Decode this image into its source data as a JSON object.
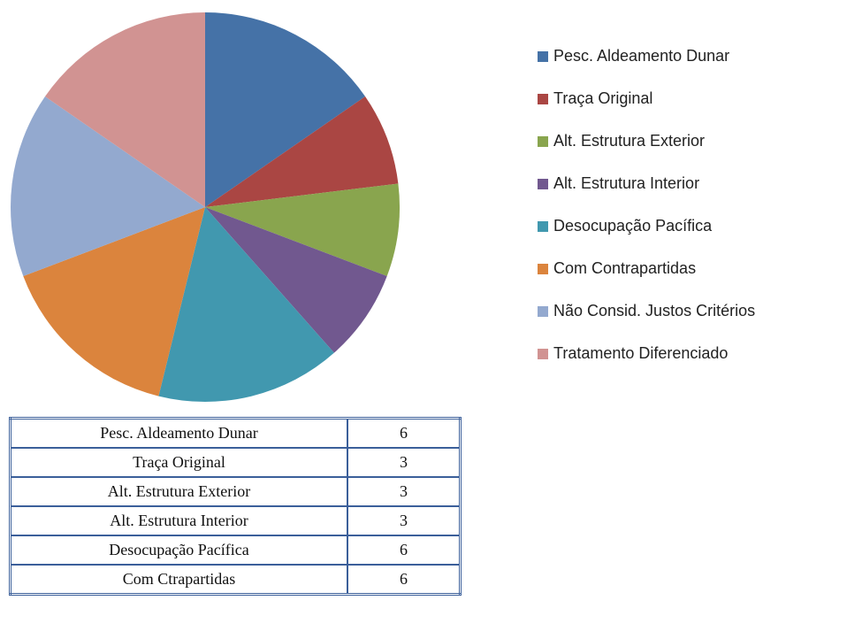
{
  "chart_data": {
    "type": "pie",
    "categories": [
      "Pesc. Aldeamento Dunar",
      "Traça Original",
      "Alt. Estrutura Exterior",
      "Alt. Estrutura Interior",
      "Desocupação Pacífica",
      "Com Contrapartidas",
      "Não Consid. Justos Critérios",
      "Tratamento Diferenciado"
    ],
    "values": [
      6,
      3,
      3,
      3,
      6,
      6,
      6,
      6
    ],
    "colors": [
      "#4572a7",
      "#aa4643",
      "#89a54e",
      "#71588f",
      "#4198af",
      "#db843d",
      "#93a9cf",
      "#d19392"
    ],
    "legend": "right"
  },
  "table": {
    "rows": [
      [
        "Pesc. Aldeamento Dunar",
        "6"
      ],
      [
        "Traça Original",
        "3"
      ],
      [
        "Alt. Estrutura Exterior",
        "3"
      ],
      [
        "Alt. Estrutura Interior",
        "3"
      ],
      [
        "Desocupação Pacífica",
        "6"
      ],
      [
        "Com Ctrapartidas",
        "6"
      ]
    ]
  }
}
